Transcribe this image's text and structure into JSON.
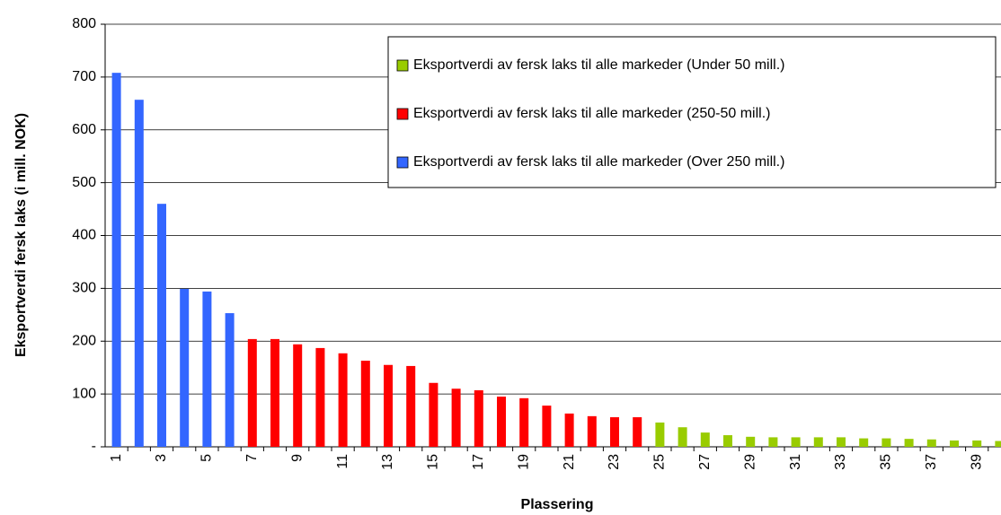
{
  "chart_data": {
    "type": "bar",
    "x_label": "Plassering",
    "y_label": "Eksportverdi fersk laks (i mill. NOK)",
    "categories": [
      "1",
      null,
      "3",
      null,
      "5",
      null,
      "7",
      null,
      "9",
      null,
      "11",
      null,
      "13",
      null,
      "15",
      null,
      "17",
      null,
      "19",
      null,
      "21",
      null,
      "23",
      null,
      "25",
      null,
      "27",
      null,
      "29",
      null,
      "31",
      null,
      "33",
      null,
      "35",
      null,
      "37",
      null,
      "39",
      null
    ],
    "series": [
      {
        "name": "Eksportverdi av fersk laks til alle markeder (Under 50 mill.)",
        "color": "#99cc00",
        "values": [
          null,
          null,
          null,
          null,
          null,
          null,
          null,
          null,
          null,
          null,
          null,
          null,
          null,
          null,
          null,
          null,
          null,
          null,
          null,
          null,
          null,
          null,
          null,
          null,
          46,
          37,
          27,
          22,
          19,
          18,
          18,
          18,
          18,
          16,
          16,
          15,
          14,
          12,
          12,
          11
        ]
      },
      {
        "name": "Eksportverdi av fersk laks til alle markeder (250-50 mill.)",
        "color": "#ff0000",
        "values": [
          null,
          null,
          null,
          null,
          null,
          null,
          204,
          204,
          194,
          187,
          177,
          163,
          155,
          153,
          121,
          110,
          107,
          95,
          92,
          78,
          63,
          58,
          56,
          56,
          null,
          null,
          null,
          null,
          null,
          null,
          null,
          null,
          null,
          null,
          null,
          null,
          null,
          null,
          null,
          null
        ]
      },
      {
        "name": "Eksportverdi av fersk laks til alle markeder (Over 250 mill.)",
        "color": "#3366ff",
        "values": [
          708,
          657,
          460,
          299,
          294,
          253,
          null,
          null,
          null,
          null,
          null,
          null,
          null,
          null,
          null,
          null,
          null,
          null,
          null,
          null,
          null,
          null,
          null,
          null,
          null,
          null,
          null,
          null,
          null,
          null,
          null,
          null,
          null,
          null,
          null,
          null,
          null,
          null,
          null,
          null
        ]
      }
    ],
    "ylim": [
      0,
      800
    ],
    "yticks": [
      {
        "value": 0,
        "label": "-"
      },
      100,
      200,
      300,
      400,
      500,
      600,
      700,
      800
    ],
    "grid": true,
    "legend": "upper right"
  }
}
